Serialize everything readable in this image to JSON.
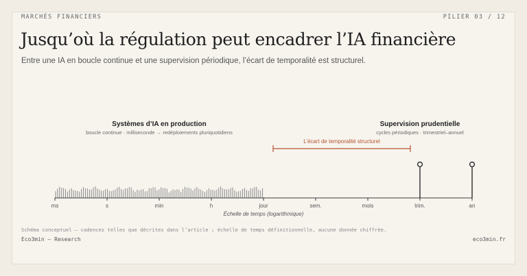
{
  "header": {
    "kicker": "MARCHÉS FINANCIERS",
    "pillar": "PILIER 03 / 12",
    "title": "Jusqu’où la régulation peut encadrer l’IA financière",
    "subtitle": "Entre une IA en boucle continue et une supervision périodique, l’écart de temporalité est structurel."
  },
  "diagram": {
    "left_group": {
      "title": "Systèmes d’IA en production",
      "caption": "boucle continue · milliseconde → redéploiements pluriquotidiens"
    },
    "right_group": {
      "title": "Supervision prudentielle",
      "caption": "cycles périodiques · trimestriel–annuel"
    },
    "gap_label": "L’écart de temporalité structurel",
    "axis_ticks": [
      "ms",
      "s",
      "min",
      "h",
      "jour",
      "sem.",
      "mois",
      "trim.",
      "an"
    ],
    "axis_title": "Échelle de temps (logarithmique)",
    "supervision_points": [
      "trim.",
      "an"
    ],
    "colors": {
      "accent": "#b5532f",
      "ink": "#2b2b2b",
      "bars": "#8a8a8a",
      "grid": "#3a3a3a"
    }
  },
  "footer": {
    "note": "Schéma conceptuel — cadences telles que décrites dans l’article ; échelle de temps définitionnelle, aucune donnée chiffrée.",
    "brand": "Eco3min — Research",
    "site": "eco3min.fr"
  }
}
